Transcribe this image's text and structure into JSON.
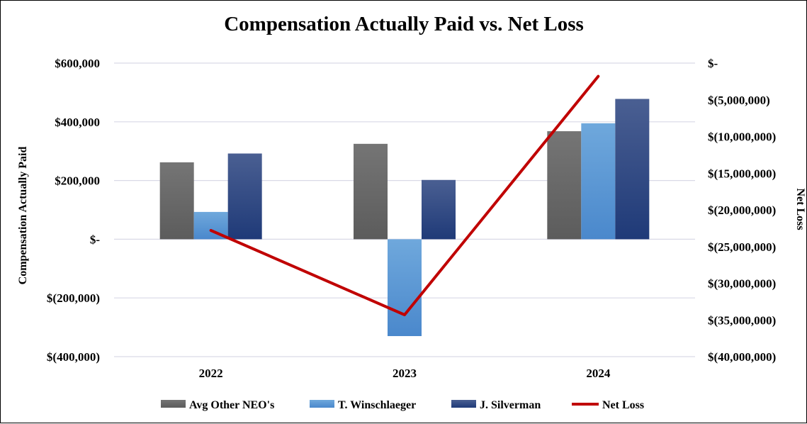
{
  "chart_data": {
    "type": "bar",
    "title": "Compensation Actually Paid vs. Net Loss",
    "categories": [
      "2022",
      "2023",
      "2024"
    ],
    "ylabel": "Compensation Actually Paid",
    "y2label": "Net Loss",
    "ylim": [
      -400000,
      600000
    ],
    "y2lim": [
      -40000000,
      0
    ],
    "yticks": [
      -400000,
      -200000,
      0,
      200000,
      400000,
      600000
    ],
    "ytick_labels": [
      "$(400,000)",
      "$(200,000)",
      "$-",
      "$200,000",
      "$400,000",
      "$600,000"
    ],
    "y2ticks": [
      -40000000,
      -35000000,
      -30000000,
      -25000000,
      -20000000,
      -15000000,
      -10000000,
      -5000000,
      0
    ],
    "y2tick_labels": [
      "$(40,000,000)",
      "$(35,000,000)",
      "$(30,000,000)",
      "$(25,000,000)",
      "$(20,000,000)",
      "$(15,000,000)",
      "$(10,000,000)",
      "$(5,000,000)",
      "$-"
    ],
    "grid": true,
    "legend_position": "bottom",
    "series": [
      {
        "name": "Avg Other NEO's",
        "kind": "bar",
        "axis": "left",
        "color": "#6b6b6b",
        "values": [
          262000,
          325000,
          368000
        ]
      },
      {
        "name": "T. Winschlaeger",
        "kind": "bar",
        "axis": "left",
        "color": "#5b9bd5",
        "values": [
          93000,
          -330000,
          395000
        ]
      },
      {
        "name": "J. Silverman",
        "kind": "bar",
        "axis": "left",
        "color": "#2e4a85",
        "values": [
          292000,
          202000,
          478000
        ]
      },
      {
        "name": "Net Loss",
        "kind": "line",
        "axis": "right",
        "color": "#c00000",
        "values": [
          -22800000,
          -34300000,
          -1800000
        ]
      }
    ]
  }
}
